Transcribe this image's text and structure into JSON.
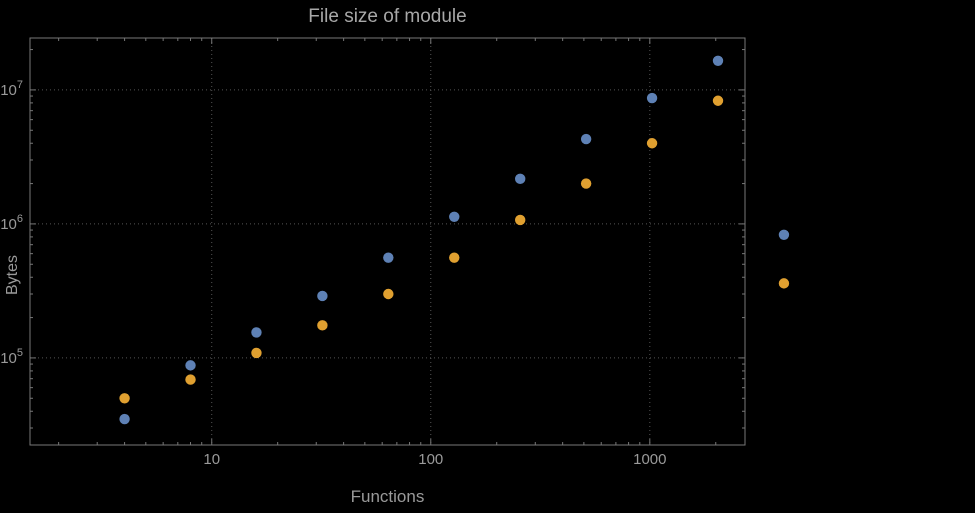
{
  "chart_data": {
    "type": "scatter",
    "title": "File size of module",
    "xlabel": "Functions",
    "ylabel": "Bytes",
    "xscale": "log",
    "yscale": "log",
    "grid": true,
    "legend": "none",
    "xlim": [
      1.48,
      2720
    ],
    "ylim": [
      22400,
      24400000
    ],
    "xticks": [
      {
        "value": 10,
        "label": "10"
      },
      {
        "value": 100,
        "label": "100"
      },
      {
        "value": 1000,
        "label": "1000"
      }
    ],
    "yticks": [
      {
        "value": 100000,
        "base": "10",
        "exp": "5"
      },
      {
        "value": 1000000,
        "base": "10",
        "exp": "6"
      },
      {
        "value": 10000000,
        "base": "10",
        "exp": "7"
      }
    ],
    "series": [
      {
        "name": "series-blue",
        "color": "#5e81b5",
        "points": [
          [
            4,
            35000
          ],
          [
            8,
            88000
          ],
          [
            16,
            155000
          ],
          [
            32,
            290000
          ],
          [
            64,
            560000
          ],
          [
            128,
            1130000
          ],
          [
            256,
            2170000
          ],
          [
            512,
            4300000
          ],
          [
            1024,
            8700000
          ],
          [
            2048,
            16500000
          ],
          [
            4096,
            830000
          ]
        ]
      },
      {
        "name": "series-orange",
        "color": "#e0a030",
        "points": [
          [
            4,
            50000
          ],
          [
            8,
            69000
          ],
          [
            16,
            109000
          ],
          [
            32,
            175000
          ],
          [
            64,
            300000
          ],
          [
            128,
            560000
          ],
          [
            256,
            1070000
          ],
          [
            512,
            2000000
          ],
          [
            1024,
            4000000
          ],
          [
            2048,
            8300000
          ],
          [
            4096,
            360000
          ]
        ]
      }
    ]
  },
  "colors": {
    "background": "#000000",
    "frame": "#777777",
    "grid": "#555555",
    "text": "#9a9a9a"
  }
}
